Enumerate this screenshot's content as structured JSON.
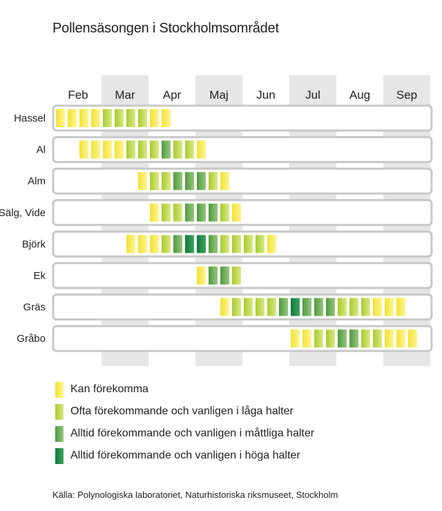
{
  "title": "Pollensäsongen i Stockholmsområdet",
  "source": "Källa: Polynologiska laboratoriet, Naturhistoriska riksmuseet, Stockholm",
  "colors": {
    "level1": [
      "#f2e233",
      "#fdf592"
    ],
    "level2": [
      "#a7cc2e",
      "#dbe985"
    ],
    "level3": [
      "#4f9a3f",
      "#97c67d"
    ],
    "level4": [
      "#0d7a3c",
      "#42a25c"
    ],
    "shade": "#e6e6e6",
    "row_border": "#c8c8c8"
  },
  "legend": [
    {
      "level": 1,
      "label": "Kan förekomma"
    },
    {
      "level": 2,
      "label": "Ofta förekommande och vanligen i låga halter"
    },
    {
      "level": 3,
      "label": "Alltid förekommande och vanligen i måttliga halter"
    },
    {
      "level": 4,
      "label": "Alltid förekommande och vanligen i höga halter"
    }
  ],
  "chart_data": {
    "type": "heatmap",
    "months": [
      "Feb",
      "Mar",
      "Apr",
      "Maj",
      "Jun",
      "Jul",
      "Aug",
      "Sep"
    ],
    "shaded_months": [
      "Mar",
      "Maj",
      "Jul",
      "Sep"
    ],
    "periods_per_month": 4,
    "level_scale": {
      "0": "ingen",
      "1": "Kan förekomma",
      "2": "Ofta förekommande och vanligen i låga halter",
      "3": "Alltid förekommande och vanligen i måttliga halter",
      "4": "Alltid förekommande och vanligen i höga halter"
    },
    "series": [
      {
        "name": "Hassel",
        "values": [
          1,
          1,
          1,
          1,
          2,
          2,
          2,
          2,
          1,
          1,
          0,
          0,
          0,
          0,
          0,
          0,
          0,
          0,
          0,
          0,
          0,
          0,
          0,
          0,
          0,
          0,
          0,
          0,
          0,
          0,
          0,
          0
        ]
      },
      {
        "name": "Al",
        "values": [
          0,
          0,
          1,
          1,
          1,
          1,
          2,
          2,
          2,
          3,
          2,
          2,
          1,
          0,
          0,
          0,
          0,
          0,
          0,
          0,
          0,
          0,
          0,
          0,
          0,
          0,
          0,
          0,
          0,
          0,
          0,
          0
        ]
      },
      {
        "name": "Alm",
        "values": [
          0,
          0,
          0,
          0,
          0,
          0,
          0,
          1,
          2,
          2,
          3,
          3,
          3,
          2,
          1,
          0,
          0,
          0,
          0,
          0,
          0,
          0,
          0,
          0,
          0,
          0,
          0,
          0,
          0,
          0,
          0,
          0
        ]
      },
      {
        "name": "Sälg, Vide",
        "values": [
          0,
          0,
          0,
          0,
          0,
          0,
          0,
          0,
          1,
          2,
          2,
          3,
          3,
          3,
          2,
          1,
          0,
          0,
          0,
          0,
          0,
          0,
          0,
          0,
          0,
          0,
          0,
          0,
          0,
          0,
          0,
          0
        ]
      },
      {
        "name": "Björk",
        "values": [
          0,
          0,
          0,
          0,
          0,
          0,
          1,
          1,
          1,
          2,
          3,
          4,
          4,
          3,
          2,
          2,
          2,
          2,
          1,
          0,
          0,
          0,
          0,
          0,
          0,
          0,
          0,
          0,
          0,
          0,
          0,
          0
        ]
      },
      {
        "name": "Ek",
        "values": [
          0,
          0,
          0,
          0,
          0,
          0,
          0,
          0,
          0,
          0,
          0,
          0,
          1,
          3,
          3,
          2,
          0,
          0,
          0,
          0,
          0,
          0,
          0,
          0,
          0,
          0,
          0,
          0,
          0,
          0,
          0,
          0
        ]
      },
      {
        "name": "Gräs",
        "values": [
          0,
          0,
          0,
          0,
          0,
          0,
          0,
          0,
          0,
          0,
          0,
          0,
          0,
          0,
          1,
          2,
          2,
          2,
          2,
          3,
          4,
          3,
          3,
          3,
          2,
          2,
          2,
          1,
          1,
          1,
          0,
          0
        ]
      },
      {
        "name": "Gråbo",
        "values": [
          0,
          0,
          0,
          0,
          0,
          0,
          0,
          0,
          0,
          0,
          0,
          0,
          0,
          0,
          0,
          0,
          0,
          0,
          0,
          0,
          1,
          1,
          2,
          2,
          3,
          3,
          2,
          2,
          1,
          1,
          1,
          0
        ]
      }
    ]
  }
}
